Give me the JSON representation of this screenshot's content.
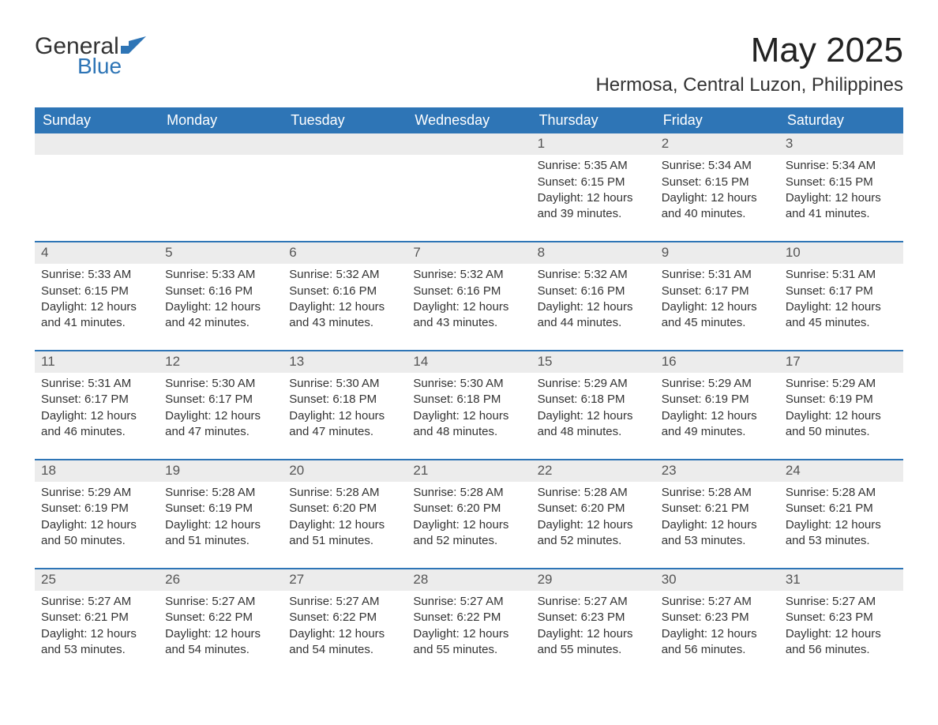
{
  "brand": {
    "word1": "General",
    "word2": "Blue",
    "accent_color": "#2e75b6"
  },
  "title": "May 2025",
  "location": "Hermosa, Central Luzon, Philippines",
  "weekdays": [
    "Sunday",
    "Monday",
    "Tuesday",
    "Wednesday",
    "Thursday",
    "Friday",
    "Saturday"
  ],
  "colors": {
    "header_bg": "#2e75b6",
    "header_text": "#ffffff",
    "daynum_bg": "#ececec",
    "row_divider": "#2e75b6",
    "text": "#333333",
    "page_bg": "#ffffff"
  },
  "first_weekday_index": 4,
  "days": [
    {
      "n": 1,
      "sunrise": "5:35 AM",
      "sunset": "6:15 PM",
      "daylight": "12 hours and 39 minutes."
    },
    {
      "n": 2,
      "sunrise": "5:34 AM",
      "sunset": "6:15 PM",
      "daylight": "12 hours and 40 minutes."
    },
    {
      "n": 3,
      "sunrise": "5:34 AM",
      "sunset": "6:15 PM",
      "daylight": "12 hours and 41 minutes."
    },
    {
      "n": 4,
      "sunrise": "5:33 AM",
      "sunset": "6:15 PM",
      "daylight": "12 hours and 41 minutes."
    },
    {
      "n": 5,
      "sunrise": "5:33 AM",
      "sunset": "6:16 PM",
      "daylight": "12 hours and 42 minutes."
    },
    {
      "n": 6,
      "sunrise": "5:32 AM",
      "sunset": "6:16 PM",
      "daylight": "12 hours and 43 minutes."
    },
    {
      "n": 7,
      "sunrise": "5:32 AM",
      "sunset": "6:16 PM",
      "daylight": "12 hours and 43 minutes."
    },
    {
      "n": 8,
      "sunrise": "5:32 AM",
      "sunset": "6:16 PM",
      "daylight": "12 hours and 44 minutes."
    },
    {
      "n": 9,
      "sunrise": "5:31 AM",
      "sunset": "6:17 PM",
      "daylight": "12 hours and 45 minutes."
    },
    {
      "n": 10,
      "sunrise": "5:31 AM",
      "sunset": "6:17 PM",
      "daylight": "12 hours and 45 minutes."
    },
    {
      "n": 11,
      "sunrise": "5:31 AM",
      "sunset": "6:17 PM",
      "daylight": "12 hours and 46 minutes."
    },
    {
      "n": 12,
      "sunrise": "5:30 AM",
      "sunset": "6:17 PM",
      "daylight": "12 hours and 47 minutes."
    },
    {
      "n": 13,
      "sunrise": "5:30 AM",
      "sunset": "6:18 PM",
      "daylight": "12 hours and 47 minutes."
    },
    {
      "n": 14,
      "sunrise": "5:30 AM",
      "sunset": "6:18 PM",
      "daylight": "12 hours and 48 minutes."
    },
    {
      "n": 15,
      "sunrise": "5:29 AM",
      "sunset": "6:18 PM",
      "daylight": "12 hours and 48 minutes."
    },
    {
      "n": 16,
      "sunrise": "5:29 AM",
      "sunset": "6:19 PM",
      "daylight": "12 hours and 49 minutes."
    },
    {
      "n": 17,
      "sunrise": "5:29 AM",
      "sunset": "6:19 PM",
      "daylight": "12 hours and 50 minutes."
    },
    {
      "n": 18,
      "sunrise": "5:29 AM",
      "sunset": "6:19 PM",
      "daylight": "12 hours and 50 minutes."
    },
    {
      "n": 19,
      "sunrise": "5:28 AM",
      "sunset": "6:19 PM",
      "daylight": "12 hours and 51 minutes."
    },
    {
      "n": 20,
      "sunrise": "5:28 AM",
      "sunset": "6:20 PM",
      "daylight": "12 hours and 51 minutes."
    },
    {
      "n": 21,
      "sunrise": "5:28 AM",
      "sunset": "6:20 PM",
      "daylight": "12 hours and 52 minutes."
    },
    {
      "n": 22,
      "sunrise": "5:28 AM",
      "sunset": "6:20 PM",
      "daylight": "12 hours and 52 minutes."
    },
    {
      "n": 23,
      "sunrise": "5:28 AM",
      "sunset": "6:21 PM",
      "daylight": "12 hours and 53 minutes."
    },
    {
      "n": 24,
      "sunrise": "5:28 AM",
      "sunset": "6:21 PM",
      "daylight": "12 hours and 53 minutes."
    },
    {
      "n": 25,
      "sunrise": "5:27 AM",
      "sunset": "6:21 PM",
      "daylight": "12 hours and 53 minutes."
    },
    {
      "n": 26,
      "sunrise": "5:27 AM",
      "sunset": "6:22 PM",
      "daylight": "12 hours and 54 minutes."
    },
    {
      "n": 27,
      "sunrise": "5:27 AM",
      "sunset": "6:22 PM",
      "daylight": "12 hours and 54 minutes."
    },
    {
      "n": 28,
      "sunrise": "5:27 AM",
      "sunset": "6:22 PM",
      "daylight": "12 hours and 55 minutes."
    },
    {
      "n": 29,
      "sunrise": "5:27 AM",
      "sunset": "6:23 PM",
      "daylight": "12 hours and 55 minutes."
    },
    {
      "n": 30,
      "sunrise": "5:27 AM",
      "sunset": "6:23 PM",
      "daylight": "12 hours and 56 minutes."
    },
    {
      "n": 31,
      "sunrise": "5:27 AM",
      "sunset": "6:23 PM",
      "daylight": "12 hours and 56 minutes."
    }
  ],
  "labels": {
    "sunrise": "Sunrise:",
    "sunset": "Sunset:",
    "daylight": "Daylight:"
  }
}
